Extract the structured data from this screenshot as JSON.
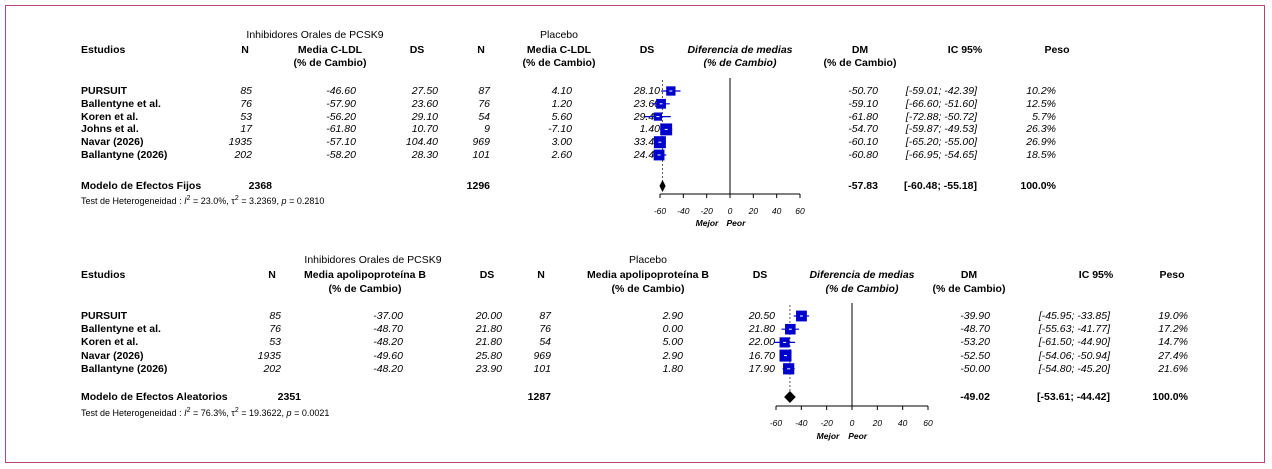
{
  "chart_data": [
    {
      "type": "forest",
      "columns": {
        "group1": "Inhibidores Orales de PCSK9",
        "group2": "Placebo",
        "studies": "Estudios",
        "n": "N",
        "mean1": "Media C-LDL",
        "mean_unit": "(% de Cambio)",
        "ds": "DS",
        "plot_title": "Diferencia de medias",
        "plot_unit": "(% de Cambio)",
        "dm": "DM",
        "dm_unit": "(% de Cambio)",
        "ci": "IC 95%",
        "weight": "Peso"
      },
      "rows": [
        {
          "study": "PURSUIT",
          "n1": "85",
          "mean1": "-46.60",
          "sd1": "27.50",
          "n2": "87",
          "mean2": "4.10",
          "sd2": "28.10",
          "dm": -50.7,
          "dm_text": "-50.70",
          "ci_lo": -59.01,
          "ci_hi": -42.39,
          "ci_text": "[-59.01; -42.39]",
          "weight": 10.2,
          "weight_text": "10.2%"
        },
        {
          "study": "Ballentyne et al.",
          "n1": "76",
          "mean1": "-57.90",
          "sd1": "23.60",
          "n2": "76",
          "mean2": "1.20",
          "sd2": "23.60",
          "dm": -59.1,
          "dm_text": "-59.10",
          "ci_lo": -66.6,
          "ci_hi": -51.6,
          "ci_text": "[-66.60; -51.60]",
          "weight": 12.5,
          "weight_text": "12.5%"
        },
        {
          "study": "Koren et al.",
          "n1": "53",
          "mean1": "-56.20",
          "sd1": "29.10",
          "n2": "54",
          "mean2": "5.60",
          "sd2": "29.40",
          "dm": -61.8,
          "dm_text": "-61.80",
          "ci_lo": -72.88,
          "ci_hi": -50.72,
          "ci_text": "[-72.88; -50.72]",
          "weight": 5.7,
          "weight_text": "5.7%"
        },
        {
          "study": "Johns et al.",
          "n1": "17",
          "mean1": "-61.80",
          "sd1": "10.70",
          "n2": "9",
          "mean2": "-7.10",
          "sd2": "1.40",
          "dm": -54.7,
          "dm_text": "-54.70",
          "ci_lo": -59.87,
          "ci_hi": -49.53,
          "ci_text": "[-59.87; -49.53]",
          "weight": 26.3,
          "weight_text": "26.3%"
        },
        {
          "study": "Navar (2026)",
          "n1": "1935",
          "mean1": "-57.10",
          "sd1": "104.40",
          "n2": "969",
          "mean2": "3.00",
          "sd2": "33.40",
          "dm": -60.1,
          "dm_text": "-60.10",
          "ci_lo": -65.2,
          "ci_hi": -55.0,
          "ci_text": "[-65.20; -55.00]",
          "weight": 26.9,
          "weight_text": "26.9%"
        },
        {
          "study": "Ballantyne (2026)",
          "n1": "202",
          "mean1": "-58.20",
          "sd1": "28.30",
          "n2": "101",
          "mean2": "2.60",
          "sd2": "24.40",
          "dm": -60.8,
          "dm_text": "-60.80",
          "ci_lo": -66.95,
          "ci_hi": -54.65,
          "ci_text": "[-66.95; -54.65]",
          "weight": 18.5,
          "weight_text": "18.5%"
        }
      ],
      "summary": {
        "label": "Modelo de Efectos Fijos",
        "n1": "2368",
        "n2": "1296",
        "dm": -57.83,
        "dm_text": "-57.83",
        "ci_lo": -60.48,
        "ci_hi": -55.18,
        "ci_text": "[-60.48; -55.18]",
        "weight_text": "100.0%"
      },
      "heterogeneity": {
        "prefix": "Test de Heterogeneidad : ",
        "i2_label": "I",
        "i2_value": " = 23.0%, ",
        "tau2_label": "τ",
        "tau2_value": " = 3.2369, ",
        "p_label": "p",
        "p_value": " = 0.2810"
      },
      "x_ticks": [
        -60,
        -40,
        -20,
        0,
        20,
        40,
        60
      ],
      "xlim": [
        -60,
        60
      ],
      "axis_left_label": "Mejor",
      "axis_right_label": "Peor",
      "colors": {
        "box": "#0000cc",
        "ci_line": "#0000cc",
        "diamond": "#000000",
        "frame": "#b5457a"
      }
    },
    {
      "type": "forest",
      "columns": {
        "group1": "Inhibidores Orales de PCSK9",
        "group2": "Placebo",
        "studies": "Estudios",
        "n": "N",
        "mean1": "Media apolipoproteína B",
        "mean_unit": "(% de Cambio)",
        "ds": "DS",
        "plot_title": "Diferencia de medias",
        "plot_unit": "(% de Cambio)",
        "dm": "DM",
        "dm_unit": "(% de Cambio)",
        "ci": "IC 95%",
        "weight": "Peso"
      },
      "rows": [
        {
          "study": "PURSUIT",
          "n1": "85",
          "mean1": "-37.00",
          "sd1": "20.00",
          "n2": "87",
          "mean2": "2.90",
          "sd2": "20.50",
          "dm": -39.9,
          "dm_text": "-39.90",
          "ci_lo": -45.95,
          "ci_hi": -33.85,
          "ci_text": "[-45.95; -33.85]",
          "weight": 19.0,
          "weight_text": "19.0%"
        },
        {
          "study": "Ballentyne et al.",
          "n1": "76",
          "mean1": "-48.70",
          "sd1": "21.80",
          "n2": "76",
          "mean2": "0.00",
          "sd2": "21.80",
          "dm": -48.7,
          "dm_text": "-48.70",
          "ci_lo": -55.63,
          "ci_hi": -41.77,
          "ci_text": "[-55.63; -41.77]",
          "weight": 17.2,
          "weight_text": "17.2%"
        },
        {
          "study": "Koren et al.",
          "n1": "53",
          "mean1": "-48.20",
          "sd1": "21.80",
          "n2": "54",
          "mean2": "5.00",
          "sd2": "22.00",
          "dm": -53.2,
          "dm_text": "-53.20",
          "ci_lo": -61.5,
          "ci_hi": -44.9,
          "ci_text": "[-61.50; -44.90]",
          "weight": 14.7,
          "weight_text": "14.7%"
        },
        {
          "study": "Navar (2026)",
          "n1": "1935",
          "mean1": "-49.60",
          "sd1": "25.80",
          "n2": "969",
          "mean2": "2.90",
          "sd2": "16.70",
          "dm": -52.5,
          "dm_text": "-52.50",
          "ci_lo": -54.06,
          "ci_hi": -50.94,
          "ci_text": "[-54.06; -50.94]",
          "weight": 27.4,
          "weight_text": "27.4%"
        },
        {
          "study": "Ballantyne (2026)",
          "n1": "202",
          "mean1": "-48.20",
          "sd1": "23.90",
          "n2": "101",
          "mean2": "1.80",
          "sd2": "17.90",
          "dm": -50.0,
          "dm_text": "-50.00",
          "ci_lo": -54.8,
          "ci_hi": -45.2,
          "ci_text": "[-54.80; -45.20]",
          "weight": 21.6,
          "weight_text": "21.6%"
        }
      ],
      "summary": {
        "label": "Modelo de Efectos Aleatorios",
        "n1": "2351",
        "n2": "1287",
        "dm": -49.02,
        "dm_text": "-49.02",
        "ci_lo": -53.61,
        "ci_hi": -44.42,
        "ci_text": "[-53.61; -44.42]",
        "weight_text": "100.0%"
      },
      "heterogeneity": {
        "prefix": "Test de Heterogeneidad : ",
        "i2_label": "I",
        "i2_value": " = 76.3%, ",
        "tau2_label": "τ",
        "tau2_value": " = 19.3622, ",
        "p_label": "p",
        "p_value": " = 0.0021"
      },
      "x_ticks": [
        -60,
        -40,
        -20,
        0,
        20,
        40,
        60
      ],
      "xlim": [
        -60,
        60
      ],
      "axis_left_label": "Mejor",
      "axis_right_label": "Peor",
      "colors": {
        "box": "#0000cc",
        "ci_line": "#0000cc",
        "diamond": "#000000",
        "frame": "#b5457a"
      }
    }
  ]
}
